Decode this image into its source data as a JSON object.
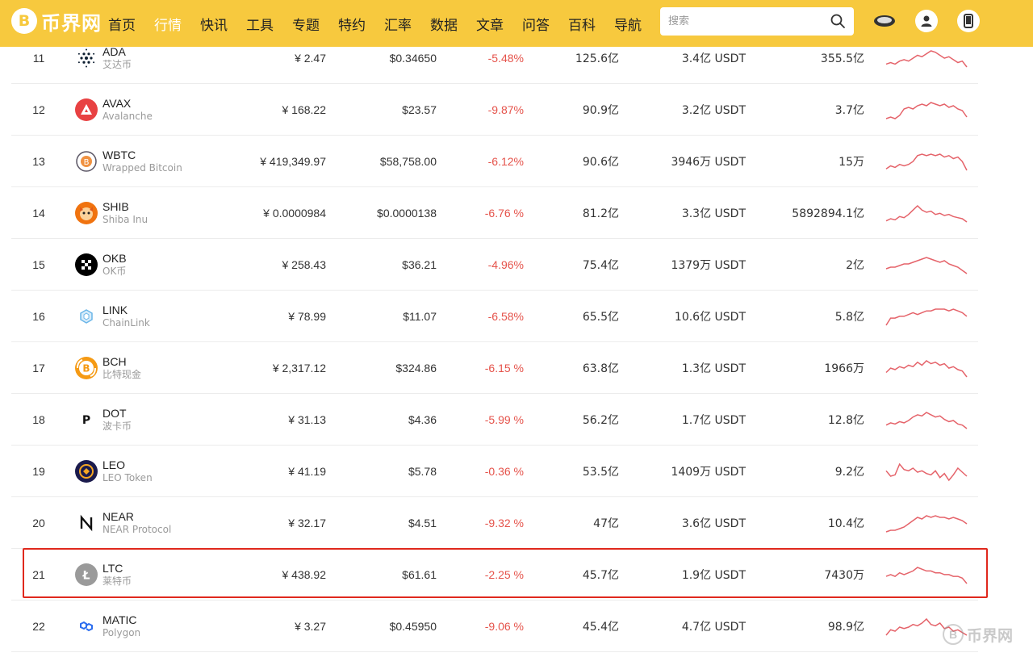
{
  "header": {
    "logo": {
      "mark": "B",
      "text": "币界网"
    },
    "nav": [
      {
        "label": "首页",
        "active": false
      },
      {
        "label": "行情",
        "active": true
      },
      {
        "label": "快讯",
        "active": false
      },
      {
        "label": "工具",
        "active": false
      },
      {
        "label": "专题",
        "active": false
      },
      {
        "label": "特约",
        "active": false
      },
      {
        "label": "汇率",
        "active": false
      },
      {
        "label": "数据",
        "active": false
      },
      {
        "label": "文章",
        "active": false
      },
      {
        "label": "问答",
        "active": false
      },
      {
        "label": "百科",
        "active": false
      },
      {
        "label": "导航",
        "active": false
      }
    ],
    "search": {
      "placeholder": "搜索",
      "icon": "search-icon"
    },
    "icons": [
      "gamepad-icon",
      "user-icon",
      "mobile-icon"
    ]
  },
  "colors": {
    "accent": "#f7c93e",
    "negative": "#e5534b",
    "highlight_border": "#e0281d",
    "spark_line": "#e5636a"
  },
  "rows": [
    {
      "rank": "11",
      "symbol": "ADA",
      "name": "艾达币",
      "icon": "cardano-icon",
      "cny": "¥ 2.47",
      "usd": "$0.34650",
      "change": "-5.48%",
      "market_cap": "125.6亿",
      "volume": "3.4亿 USDT",
      "supply": "355.5亿",
      "spark": [
        5,
        6,
        5,
        7,
        8,
        7,
        9,
        11,
        10,
        12,
        14,
        13,
        11,
        9,
        10,
        8,
        6,
        7,
        3
      ],
      "highlighted": false
    },
    {
      "rank": "12",
      "symbol": "AVAX",
      "name": "Avalanche",
      "icon": "avalanche-icon",
      "cny": "¥ 168.22",
      "usd": "$23.57",
      "change": "-9.87%",
      "market_cap": "90.9亿",
      "volume": "3.2亿 USDT",
      "supply": "3.7亿",
      "spark": [
        4,
        5,
        4,
        6,
        10,
        11,
        10,
        12,
        13,
        12,
        14,
        13,
        12,
        13,
        11,
        12,
        10,
        9,
        5
      ],
      "highlighted": false
    },
    {
      "rank": "13",
      "symbol": "WBTC",
      "name": "Wrapped Bitcoin",
      "icon": "wbtc-icon",
      "cny": "¥ 419,349.97",
      "usd": "$58,758.00",
      "change": "-6.12%",
      "market_cap": "90.6亿",
      "volume": "3946万 USDT",
      "supply": "15万",
      "spark": [
        5,
        7,
        6,
        8,
        7,
        8,
        10,
        14,
        15,
        14,
        15,
        14,
        15,
        13,
        14,
        12,
        13,
        10,
        4
      ],
      "highlighted": false
    },
    {
      "rank": "14",
      "symbol": "SHIB",
      "name": "Shiba Inu",
      "icon": "shiba-icon",
      "cny": "¥ 0.0000984",
      "usd": "$0.0000138",
      "change": "-6.76 %",
      "market_cap": "81.2亿",
      "volume": "3.3亿 USDT",
      "supply": "5892894.1亿",
      "spark": [
        4,
        6,
        5,
        8,
        7,
        10,
        14,
        18,
        14,
        12,
        13,
        10,
        11,
        9,
        10,
        8,
        7,
        6,
        3
      ],
      "highlighted": false
    },
    {
      "rank": "15",
      "symbol": "OKB",
      "name": "OK币",
      "icon": "okb-icon",
      "cny": "¥ 258.43",
      "usd": "$36.21",
      "change": "-4.96%",
      "market_cap": "75.4亿",
      "volume": "1379万 USDT",
      "supply": "2亿",
      "spark": [
        7,
        8,
        8,
        9,
        10,
        10,
        11,
        12,
        13,
        14,
        13,
        12,
        11,
        12,
        10,
        9,
        8,
        6,
        4
      ],
      "highlighted": false
    },
    {
      "rank": "16",
      "symbol": "LINK",
      "name": "ChainLink",
      "icon": "chainlink-icon",
      "cny": "¥ 78.99",
      "usd": "$11.07",
      "change": "-6.58%",
      "market_cap": "65.5亿",
      "volume": "10.6亿 USDT",
      "supply": "5.8亿",
      "spark": [
        5,
        9,
        9,
        10,
        10,
        11,
        12,
        11,
        12,
        13,
        13,
        14,
        14,
        14,
        13,
        14,
        13,
        12,
        10
      ],
      "highlighted": false
    },
    {
      "rank": "17",
      "symbol": "BCH",
      "name": "比特现金",
      "icon": "bitcoin-cash-icon",
      "cny": "¥ 2,317.12",
      "usd": "$324.86",
      "change": "-6.15 %",
      "market_cap": "63.8亿",
      "volume": "1.3亿 USDT",
      "supply": "1966万",
      "spark": [
        6,
        9,
        8,
        10,
        9,
        11,
        10,
        13,
        11,
        14,
        12,
        13,
        11,
        12,
        9,
        10,
        8,
        7,
        3
      ],
      "highlighted": false
    },
    {
      "rank": "18",
      "symbol": "DOT",
      "name": "波卡币",
      "icon": "polkadot-icon",
      "cny": "¥ 31.13",
      "usd": "$4.36",
      "change": "-5.99 %",
      "market_cap": "56.2亿",
      "volume": "1.7亿 USDT",
      "supply": "12.8亿",
      "spark": [
        6,
        8,
        7,
        9,
        8,
        10,
        13,
        15,
        14,
        17,
        15,
        13,
        14,
        11,
        9,
        10,
        7,
        6,
        3
      ],
      "highlighted": false
    },
    {
      "rank": "19",
      "symbol": "LEO",
      "name": "LEO Token",
      "icon": "leo-icon",
      "cny": "¥ 41.19",
      "usd": "$5.78",
      "change": "-0.36 %",
      "market_cap": "53.5亿",
      "volume": "1409万 USDT",
      "supply": "9.2亿",
      "spark": [
        12,
        8,
        9,
        17,
        13,
        12,
        14,
        11,
        12,
        10,
        9,
        12,
        7,
        10,
        5,
        9,
        14,
        11,
        8
      ],
      "highlighted": false
    },
    {
      "rank": "20",
      "symbol": "NEAR",
      "name": "NEAR Protocol",
      "icon": "near-icon",
      "cny": "¥ 32.17",
      "usd": "$4.51",
      "change": "-9.32 %",
      "market_cap": "47亿",
      "volume": "3.6亿 USDT",
      "supply": "10.4亿",
      "spark": [
        3,
        4,
        4,
        5,
        6,
        8,
        10,
        12,
        11,
        13,
        12,
        13,
        12,
        12,
        11,
        12,
        11,
        10,
        8
      ],
      "highlighted": false
    },
    {
      "rank": "21",
      "symbol": "LTC",
      "name": "莱特币",
      "icon": "litecoin-icon",
      "cny": "¥ 438.92",
      "usd": "$61.61",
      "change": "-2.25 %",
      "market_cap": "45.7亿",
      "volume": "1.9亿 USDT",
      "supply": "7430万",
      "spark": [
        8,
        9,
        8,
        10,
        9,
        10,
        11,
        13,
        12,
        11,
        11,
        10,
        10,
        9,
        9,
        8,
        8,
        7,
        4
      ],
      "highlighted": true
    },
    {
      "rank": "22",
      "symbol": "MATIC",
      "name": "Polygon",
      "icon": "polygon-icon",
      "cny": "¥ 3.27",
      "usd": "$0.45950",
      "change": "-9.06 %",
      "market_cap": "45.4亿",
      "volume": "4.7亿 USDT",
      "supply": "98.9亿",
      "spark": [
        5,
        9,
        8,
        11,
        10,
        11,
        13,
        12,
        14,
        17,
        13,
        12,
        14,
        10,
        11,
        8,
        9,
        7,
        5
      ],
      "highlighted": false
    }
  ],
  "watermark": {
    "mark": "B",
    "text": "币界网"
  }
}
